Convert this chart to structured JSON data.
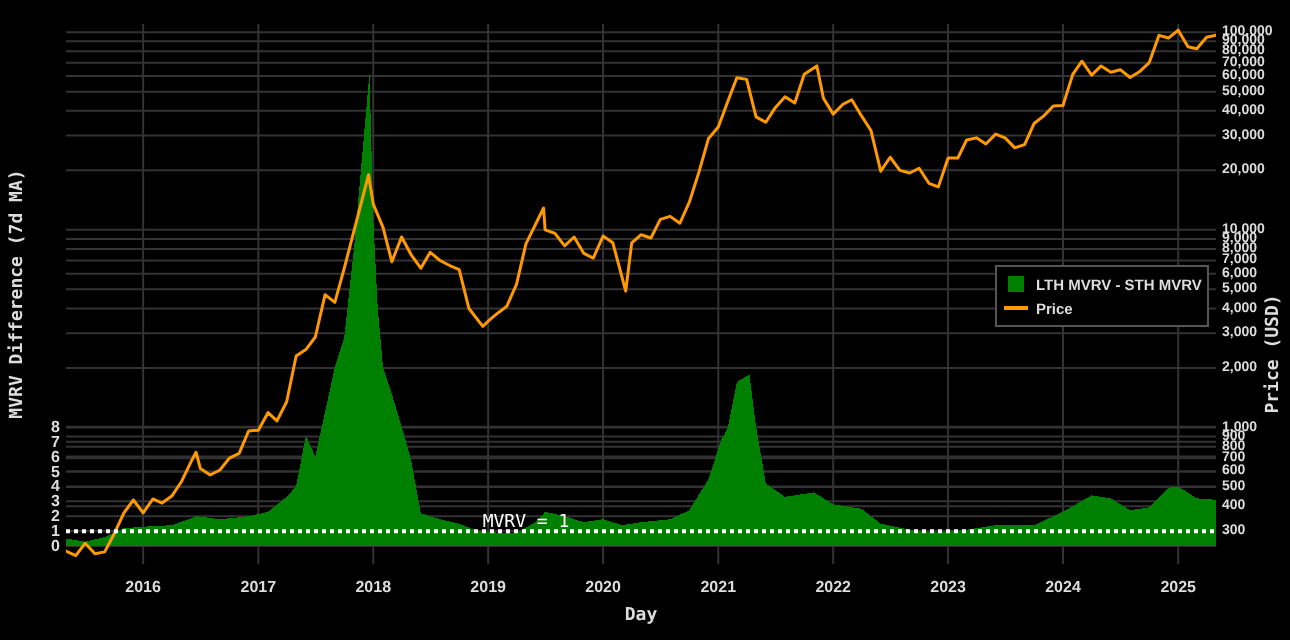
{
  "chart_data": {
    "type": "area",
    "xlabel": "Day",
    "ylabel": "MVRV Difference (7d MA)",
    "y2label": "Price (USD)",
    "xlim": [
      "2015-05-01",
      "2025-05-01"
    ],
    "xticks": [
      "2016",
      "2017",
      "2018",
      "2019",
      "2020",
      "2021",
      "2022",
      "2023",
      "2024",
      "2025"
    ],
    "ylim": [
      -1.2,
      35
    ],
    "yticks": [
      0,
      1,
      2,
      3,
      4,
      5,
      6,
      7,
      8
    ],
    "y2lim": [
      204,
      110000
    ],
    "log": "y2",
    "y2ticks": [
      300,
      400,
      500,
      600,
      700,
      800,
      900,
      {
        "value": 1000,
        "label": "1,000"
      },
      {
        "value": 2000,
        "label": "2,000"
      },
      {
        "value": 3000,
        "label": "3,000"
      },
      {
        "value": 4000,
        "label": "4,000"
      },
      {
        "value": 5000,
        "label": "5,000"
      },
      {
        "value": 6000,
        "label": "6,000"
      },
      {
        "value": 7000,
        "label": "7,000"
      },
      {
        "value": 8000,
        "label": "8,000"
      },
      {
        "value": 9000,
        "label": "9,000"
      },
      {
        "value": 10000,
        "label": "10,000"
      },
      {
        "value": 20000,
        "label": "20,000"
      },
      {
        "value": 30000,
        "label": "30,000"
      },
      {
        "value": 40000,
        "label": "40,000"
      },
      {
        "value": 50000,
        "label": "50,000"
      },
      {
        "value": 60000,
        "label": "60,000"
      },
      {
        "value": 70000,
        "label": "70,000"
      },
      {
        "value": 80000,
        "label": "80,000"
      },
      {
        "value": 90000,
        "label": "90,000"
      },
      {
        "value": 100000,
        "label": "100,000"
      }
    ],
    "grid": true,
    "legend": "right",
    "ref_lines": [
      {
        "axis": "y",
        "value": 1,
        "label": "MVRV = 1",
        "color": "#ffffff",
        "line_style": "dotted"
      }
    ],
    "series": [
      {
        "name": "LTH MVRV - STH MVRV",
        "color": "#008000",
        "x": [
          "2015-05-01",
          "2015-07-01",
          "2015-09-01",
          "2015-11-01",
          "2016-01-01",
          "2016-04-01",
          "2016-06-20",
          "2016-09-01",
          "2016-12-01",
          "2017-02-01",
          "2017-04-01",
          "2017-05-01",
          "2017-06-01",
          "2017-07-01",
          "2017-08-01",
          "2017-09-01",
          "2017-10-01",
          "2017-11-01",
          "2017-12-20",
          "2018-01-01",
          "2018-01-15",
          "2018-02-01",
          "2018-03-01",
          "2018-04-01",
          "2018-05-01",
          "2018-06-01",
          "2018-08-01",
          "2018-10-01",
          "2018-12-01",
          "2019-02-01",
          "2019-04-01",
          "2019-06-01",
          "2019-07-01",
          "2019-09-01",
          "2019-11-01",
          "2020-01-01",
          "2020-03-01",
          "2020-05-01",
          "2020-08-01",
          "2020-10-01",
          "2020-12-01",
          "2021-01-10",
          "2021-02-01",
          "2021-03-01",
          "2021-04-10",
          "2021-05-01",
          "2021-06-01",
          "2021-08-01",
          "2021-11-01",
          "2022-01-01",
          "2022-04-01",
          "2022-06-01",
          "2022-09-01",
          "2022-12-01",
          "2023-03-01",
          "2023-06-01",
          "2023-10-01",
          "2024-01-01",
          "2024-04-01",
          "2024-06-01",
          "2024-08-01",
          "2024-10-01",
          "2024-12-01",
          "2025-01-01",
          "2025-03-01",
          "2025-05-01"
        ],
        "values": [
          0.5,
          0.3,
          0.6,
          1.2,
          1.3,
          1.4,
          2.0,
          1.8,
          2.0,
          2.3,
          3.3,
          4,
          7.4,
          6,
          9,
          12,
          14,
          20,
          31.7,
          22,
          16,
          12,
          10.2,
          8,
          5.8,
          2.2,
          1.8,
          1.5,
          1.0,
          0.9,
          0.9,
          1.6,
          2.3,
          2.0,
          1.6,
          1.8,
          1.4,
          1.6,
          1.8,
          2.4,
          4.5,
          7.1,
          8,
          11,
          11.5,
          8,
          4.2,
          3.3,
          3.6,
          2.8,
          2.5,
          1.5,
          1.1,
          0.9,
          1.1,
          1.4,
          1.4,
          2.3,
          3.4,
          3.2,
          2.4,
          2.6,
          3.9,
          4.0,
          3.2,
          3.1
        ]
      },
      {
        "name": "Price",
        "type": "line",
        "axis": "y2",
        "color": "#ff9900",
        "x": [
          "2015-05-01",
          "2015-06-01",
          "2015-07-01",
          "2015-08-01",
          "2015-09-01",
          "2015-10-01",
          "2015-11-01",
          "2015-12-01",
          "2016-01-01",
          "2016-02-01",
          "2016-03-01",
          "2016-04-01",
          "2016-05-01",
          "2016-06-01",
          "2016-06-17",
          "2016-07-01",
          "2016-08-01",
          "2016-09-01",
          "2016-10-01",
          "2016-11-01",
          "2016-12-01",
          "2017-01-01",
          "2017-02-01",
          "2017-03-01",
          "2017-04-01",
          "2017-05-01",
          "2017-06-01",
          "2017-07-01",
          "2017-08-01",
          "2017-09-01",
          "2017-10-01",
          "2017-11-01",
          "2017-12-17",
          "2018-01-01",
          "2018-02-01",
          "2018-03-01",
          "2018-04-01",
          "2018-05-01",
          "2018-06-01",
          "2018-07-01",
          "2018-08-01",
          "2018-09-01",
          "2018-10-01",
          "2018-11-01",
          "2018-12-15",
          "2019-01-01",
          "2019-02-01",
          "2019-03-01",
          "2019-04-01",
          "2019-05-01",
          "2019-06-26",
          "2019-07-01",
          "2019-08-01",
          "2019-09-01",
          "2019-10-01",
          "2019-11-01",
          "2019-12-01",
          "2020-01-01",
          "2020-02-01",
          "2020-03-13",
          "2020-04-01",
          "2020-05-01",
          "2020-06-01",
          "2020-07-01",
          "2020-08-01",
          "2020-09-01",
          "2020-10-01",
          "2020-11-01",
          "2020-12-01",
          "2021-01-01",
          "2021-02-01",
          "2021-03-01",
          "2021-04-01",
          "2021-05-01",
          "2021-06-01",
          "2021-07-01",
          "2021-08-01",
          "2021-09-01",
          "2021-10-01",
          "2021-11-10",
          "2021-12-01",
          "2022-01-01",
          "2022-02-01",
          "2022-03-01",
          "2022-04-01",
          "2022-05-01",
          "2022-06-01",
          "2022-07-01",
          "2022-08-01",
          "2022-09-01",
          "2022-10-01",
          "2022-11-01",
          "2022-12-01",
          "2023-01-01",
          "2023-02-01",
          "2023-03-01",
          "2023-04-01",
          "2023-05-01",
          "2023-06-01",
          "2023-07-01",
          "2023-08-01",
          "2023-09-01",
          "2023-10-01",
          "2023-11-01",
          "2023-12-01",
          "2024-01-01",
          "2024-02-01",
          "2024-03-01",
          "2024-04-01",
          "2024-05-01",
          "2024-06-01",
          "2024-07-01",
          "2024-08-01",
          "2024-09-01",
          "2024-10-01",
          "2024-11-01",
          "2024-12-01",
          "2025-01-01",
          "2025-02-01",
          "2025-03-01",
          "2025-04-01",
          "2025-05-01"
        ],
        "values": [
          237,
          225,
          260,
          230,
          235,
          290,
          370,
          430,
          370,
          435,
          415,
          450,
          530,
          670,
          750,
          620,
          575,
          610,
          700,
          740,
          960,
          970,
          1190,
          1080,
          1350,
          2300,
          2480,
          2870,
          4700,
          4300,
          6400,
          9900,
          19000,
          13500,
          10300,
          6900,
          9200,
          7500,
          6400,
          7700,
          7000,
          6600,
          6300,
          4000,
          3250,
          3450,
          3800,
          4100,
          5300,
          8500,
          12900,
          10000,
          9600,
          8300,
          9200,
          7600,
          7200,
          9300,
          8600,
          4900,
          8600,
          9450,
          9100,
          11300,
          11700,
          10800,
          13800,
          19700,
          29000,
          33100,
          45000,
          58800,
          57700,
          37300,
          35000,
          41500,
          47100,
          43800,
          61300,
          67500,
          46300,
          38500,
          43200,
          45500,
          37700,
          31800,
          19800,
          23300,
          20000,
          19400,
          20500,
          17200,
          16500,
          23100,
          23100,
          28500,
          29200,
          27200,
          30500,
          29200,
          26000,
          27000,
          34500,
          37700,
          42300,
          42600,
          61200,
          71300,
          60600,
          67500,
          62700,
          64600,
          59000,
          63300,
          70200,
          96400,
          93400,
          102400,
          84400,
          82500,
          94200,
          96500
        ]
      }
    ]
  }
}
